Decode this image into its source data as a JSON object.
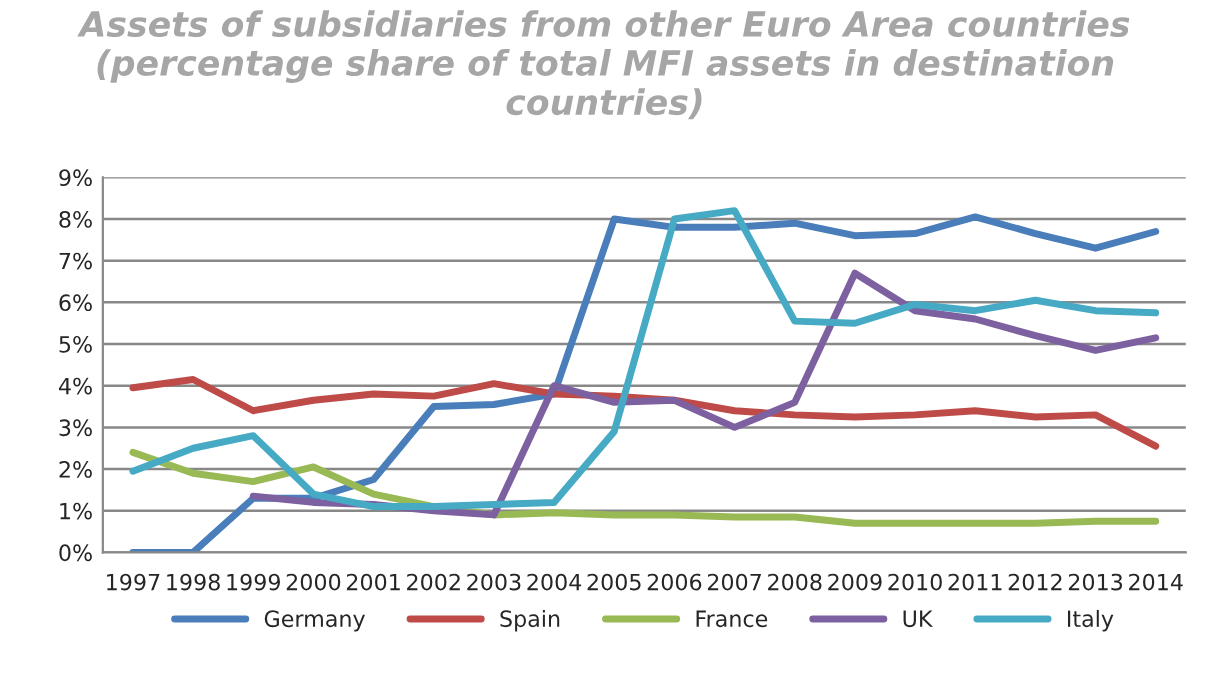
{
  "chart_data": {
    "type": "line",
    "title": "Assets of subsidiaries from other Euro Area countries\n(percentage share of total MFI assets in destination\ncountries)",
    "categories": [
      "1997",
      "1998",
      "1999",
      "2000",
      "2001",
      "2002",
      "2003",
      "2004",
      "2005",
      "2006",
      "2007",
      "2008",
      "2009",
      "2010",
      "2011",
      "2012",
      "2013",
      "2014"
    ],
    "series": [
      {
        "name": "Germany",
        "color": "#4a7ebb",
        "values": [
          0,
          0,
          1.3,
          1.3,
          1.75,
          3.5,
          3.55,
          3.8,
          8.0,
          7.8,
          7.8,
          7.9,
          7.6,
          7.65,
          8.05,
          7.65,
          7.3,
          7.7
        ]
      },
      {
        "name": "Spain",
        "color": "#be4b48",
        "values": [
          3.95,
          4.15,
          3.4,
          3.65,
          3.8,
          3.75,
          4.05,
          3.8,
          3.75,
          3.65,
          3.4,
          3.3,
          3.25,
          3.3,
          3.4,
          3.25,
          3.3,
          2.55
        ]
      },
      {
        "name": "France",
        "color": "#98b954",
        "values": [
          2.4,
          1.9,
          1.7,
          2.05,
          1.4,
          1.1,
          0.9,
          0.95,
          0.9,
          0.9,
          0.85,
          0.85,
          0.7,
          0.7,
          0.7,
          0.7,
          0.75,
          0.75
        ]
      },
      {
        "name": "UK",
        "color": "#7d60a0",
        "values": [
          null,
          null,
          1.35,
          1.2,
          1.15,
          1.0,
          0.9,
          4.0,
          3.6,
          3.65,
          3.0,
          3.6,
          6.7,
          5.8,
          5.6,
          5.2,
          4.85,
          5.15
        ]
      },
      {
        "name": "Italy",
        "color": "#46aac5",
        "values": [
          1.95,
          2.5,
          2.8,
          1.4,
          1.1,
          1.1,
          1.15,
          1.2,
          2.9,
          8.0,
          8.2,
          5.55,
          5.5,
          5.95,
          5.8,
          6.05,
          5.8,
          5.75
        ]
      }
    ],
    "ylim": [
      0,
      9
    ],
    "yticks": [
      {
        "value": 0,
        "label": "0%"
      },
      {
        "value": 1,
        "label": "1%"
      },
      {
        "value": 2,
        "label": "2%"
      },
      {
        "value": 3,
        "label": "3%"
      },
      {
        "value": 4,
        "label": "4%"
      },
      {
        "value": 5,
        "label": "5%"
      },
      {
        "value": 6,
        "label": "6%"
      },
      {
        "value": 7,
        "label": "7%"
      },
      {
        "value": 8,
        "label": "8%"
      },
      {
        "value": 9,
        "label": "9%"
      }
    ],
    "grid": "y",
    "legend": "bottom",
    "marker": "none",
    "line_style": "solid"
  }
}
